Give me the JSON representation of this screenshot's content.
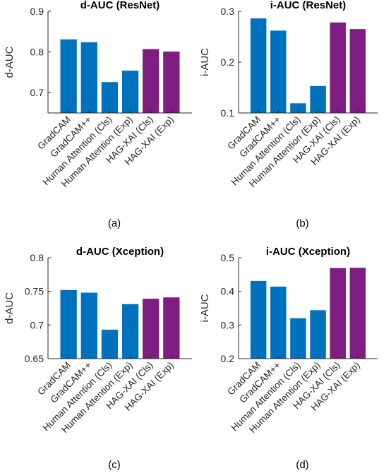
{
  "chart_data": [
    {
      "type": "bar",
      "title": "d-AUC (ResNet)",
      "ylabel": "d-AUC",
      "caption": "(a)",
      "categories": [
        "GradCAM",
        "GradCAM++",
        "Human Attention (Cls)",
        "Human Attention (Exp)",
        "HAG-XAI (Cls)",
        "HAG-XAI (Exp)"
      ],
      "values": [
        0.831,
        0.824,
        0.726,
        0.754,
        0.807,
        0.801
      ],
      "colors": [
        "#0072BD",
        "#0072BD",
        "#0072BD",
        "#0072BD",
        "#7E1E80",
        "#7E1E80"
      ],
      "ylim": [
        0.65,
        0.9
      ],
      "yticks": [
        "0.7",
        "0.8",
        "0.9"
      ],
      "ytick_values": [
        0.7,
        0.8,
        0.9
      ]
    },
    {
      "type": "bar",
      "title": "i-AUC (ResNet)",
      "ylabel": "i-AUC",
      "caption": "(b)",
      "categories": [
        "GradCAM",
        "GradCAM++",
        "Human Attention (Cls)",
        "Human Attention (Exp)",
        "HAG-XAI (Cls)",
        "HAG-XAI (Exp)"
      ],
      "values": [
        0.286,
        0.262,
        0.119,
        0.153,
        0.278,
        0.265
      ],
      "colors": [
        "#0072BD",
        "#0072BD",
        "#0072BD",
        "#0072BD",
        "#7E1E80",
        "#7E1E80"
      ],
      "ylim": [
        0.1,
        0.3
      ],
      "yticks": [
        "0.1",
        "0.2",
        "0.3"
      ],
      "ytick_values": [
        0.1,
        0.2,
        0.3
      ]
    },
    {
      "type": "bar",
      "title": "d-AUC (Xception)",
      "ylabel": "d-AUC",
      "caption": "(c)",
      "categories": [
        "GradCAM",
        "GradCAM++",
        "Human Attention (Cls)",
        "Human Attention (Exp)",
        "HAG-XAI (Cls)",
        "HAG-XAI (Exp)"
      ],
      "values": [
        0.752,
        0.748,
        0.693,
        0.731,
        0.739,
        0.741
      ],
      "colors": [
        "#0072BD",
        "#0072BD",
        "#0072BD",
        "#0072BD",
        "#7E1E80",
        "#7E1E80"
      ],
      "ylim": [
        0.65,
        0.8
      ],
      "yticks": [
        "0.65",
        "0.7",
        "0.75",
        "0.8"
      ],
      "ytick_values": [
        0.65,
        0.7,
        0.75,
        0.8
      ]
    },
    {
      "type": "bar",
      "title": "i-AUC (Xception)",
      "ylabel": "i-AUC",
      "caption": "(d)",
      "categories": [
        "GradCAM",
        "GradCAM++",
        "Human Attention (Cls)",
        "Human Attention (Exp)",
        "HAG-XAI (Cls)",
        "HAG-XAI (Exp)"
      ],
      "values": [
        0.431,
        0.414,
        0.32,
        0.344,
        0.469,
        0.47
      ],
      "colors": [
        "#0072BD",
        "#0072BD",
        "#0072BD",
        "#0072BD",
        "#7E1E80",
        "#7E1E80"
      ],
      "ylim": [
        0.2,
        0.5
      ],
      "yticks": [
        "0.2",
        "0.3",
        "0.4",
        "0.5"
      ],
      "ytick_values": [
        0.2,
        0.3,
        0.4,
        0.5
      ]
    }
  ]
}
